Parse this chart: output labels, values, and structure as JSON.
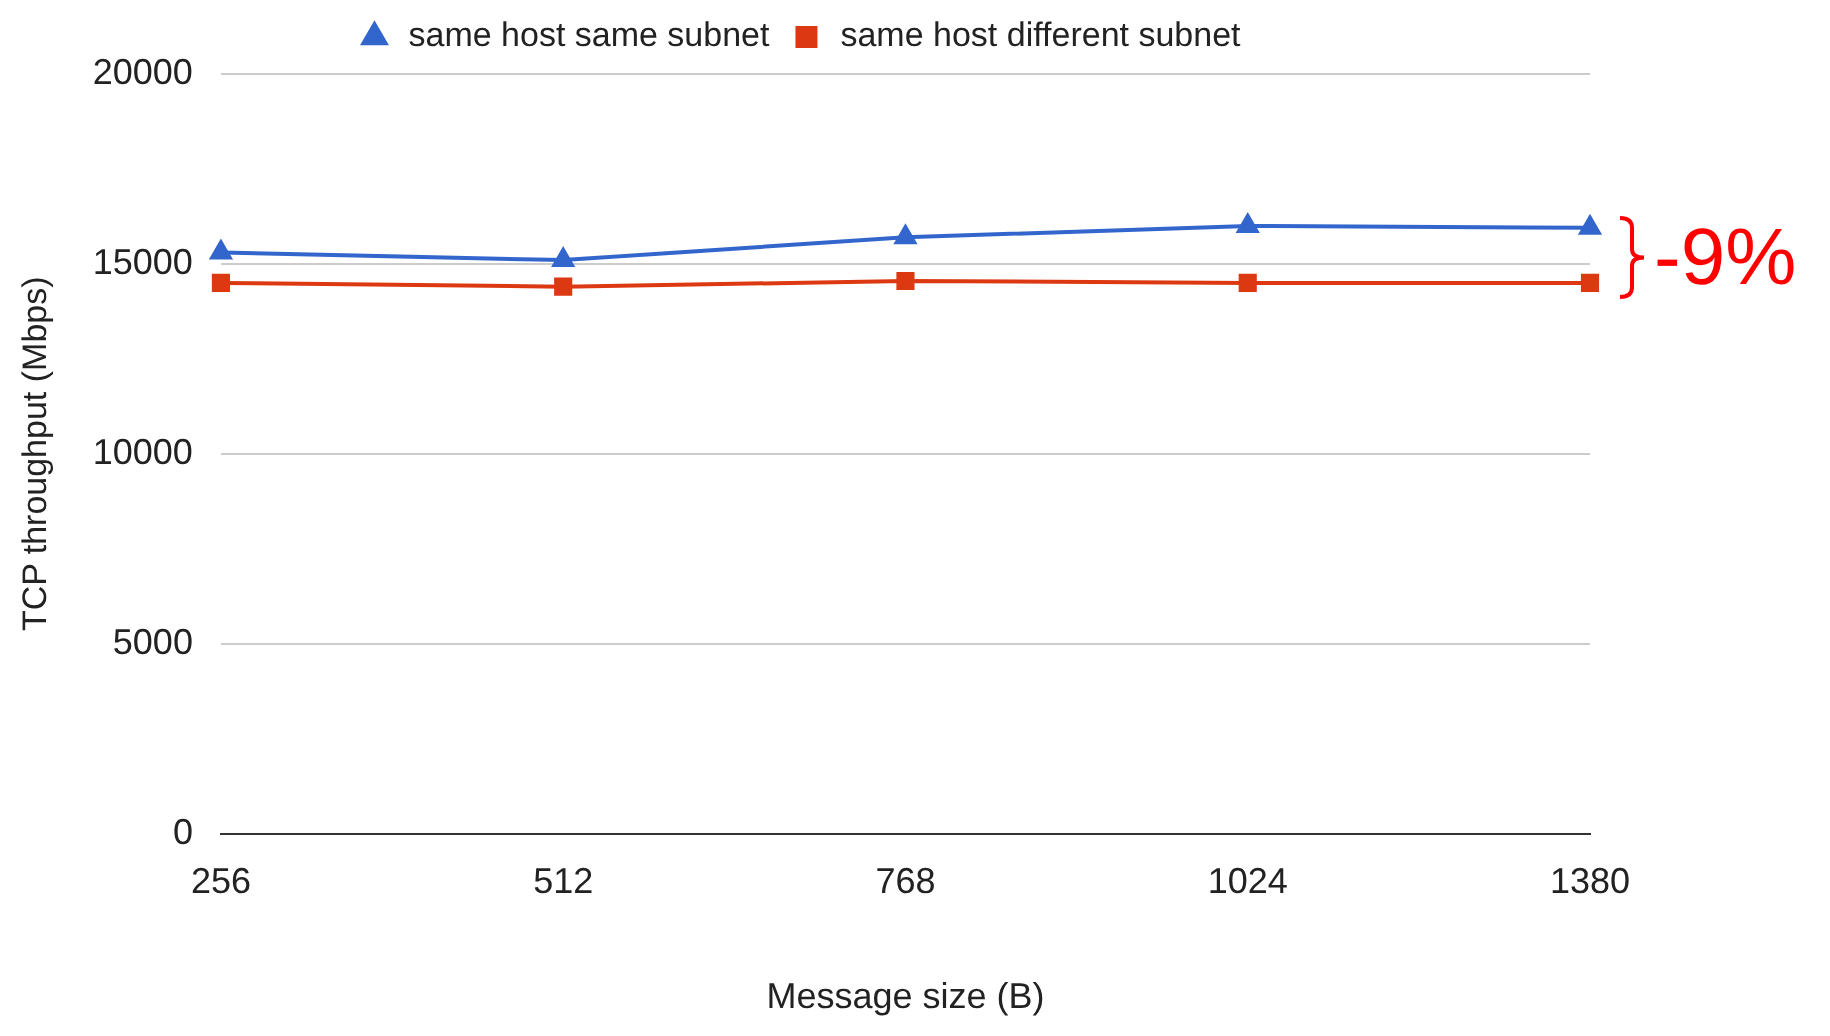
{
  "chart_data": {
    "type": "line",
    "xlabel": "Message size (B)",
    "ylabel": "TCP throughput (Mbps)",
    "categories": [
      "256",
      "512",
      "768",
      "1024",
      "1380"
    ],
    "series": [
      {
        "name": "same host same subnet",
        "color": "#3366cc",
        "marker": "triangle",
        "values": [
          15300,
          15100,
          15700,
          16000,
          15950
        ]
      },
      {
        "name": "same host different subnet",
        "color": "#dc3912",
        "marker": "square",
        "values": [
          14500,
          14400,
          14550,
          14500,
          14500
        ]
      }
    ],
    "ylim": [
      0,
      20000
    ],
    "yticks": [
      0,
      5000,
      10000,
      15000,
      20000
    ],
    "grid": "y",
    "legend": "top",
    "line_style": "solid",
    "annotations": [
      "-9%"
    ]
  }
}
